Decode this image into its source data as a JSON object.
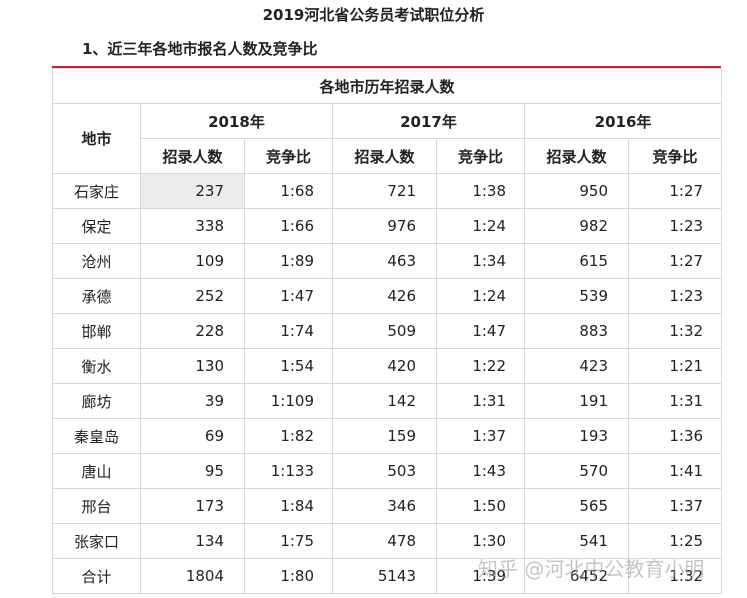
{
  "page_title": "2019河北省公务员考试职位分析",
  "section_title": "1、近三年各地市报名人数及竞争比",
  "table": {
    "caption": "各地市历年招录人数",
    "city_header": "地市",
    "years": [
      "2018年",
      "2017年",
      "2016年"
    ],
    "sub_headers": [
      "招录人数",
      "竞争比"
    ],
    "rows": [
      {
        "city": "石家庄",
        "c2018": "237",
        "r2018": "1:68",
        "c2017": "721",
        "r2017": "1:38",
        "c2016": "950",
        "r2016": "1:27"
      },
      {
        "city": "保定",
        "c2018": "338",
        "r2018": "1:66",
        "c2017": "976",
        "r2017": "1:24",
        "c2016": "982",
        "r2016": "1:23"
      },
      {
        "city": "沧州",
        "c2018": "109",
        "r2018": "1:89",
        "c2017": "463",
        "r2017": "1:34",
        "c2016": "615",
        "r2016": "1:27"
      },
      {
        "city": "承德",
        "c2018": "252",
        "r2018": "1:47",
        "c2017": "426",
        "r2017": "1:24",
        "c2016": "539",
        "r2016": "1:23"
      },
      {
        "city": "邯郸",
        "c2018": "228",
        "r2018": "1:74",
        "c2017": "509",
        "r2017": "1:47",
        "c2016": "883",
        "r2016": "1:32"
      },
      {
        "city": "衡水",
        "c2018": "130",
        "r2018": "1:54",
        "c2017": "420",
        "r2017": "1:22",
        "c2016": "423",
        "r2016": "1:21"
      },
      {
        "city": "廊坊",
        "c2018": "39",
        "r2018": "1:109",
        "c2017": "142",
        "r2017": "1:31",
        "c2016": "191",
        "r2016": "1:31"
      },
      {
        "city": "秦皇岛",
        "c2018": "69",
        "r2018": "1:82",
        "c2017": "159",
        "r2017": "1:37",
        "c2016": "193",
        "r2016": "1:36"
      },
      {
        "city": "唐山",
        "c2018": "95",
        "r2018": "1:133",
        "c2017": "503",
        "r2017": "1:43",
        "c2016": "570",
        "r2016": "1:41"
      },
      {
        "city": "邢台",
        "c2018": "173",
        "r2018": "1:84",
        "c2017": "346",
        "r2017": "1:50",
        "c2016": "565",
        "r2016": "1:37"
      },
      {
        "city": "张家口",
        "c2018": "134",
        "r2018": "1:75",
        "c2017": "478",
        "r2017": "1:30",
        "c2016": "541",
        "r2016": "1:25"
      },
      {
        "city": "合计",
        "c2018": "1804",
        "r2018": "1:80",
        "c2017": "5143",
        "r2017": "1:39",
        "c2016": "6452",
        "r2016": "1:32"
      }
    ]
  },
  "watermark": "知乎 @河北中公教育小明",
  "colors": {
    "accent_rule": "#c0282d",
    "grid": "#d6d6d6",
    "highlight_cell": "#ececec"
  }
}
